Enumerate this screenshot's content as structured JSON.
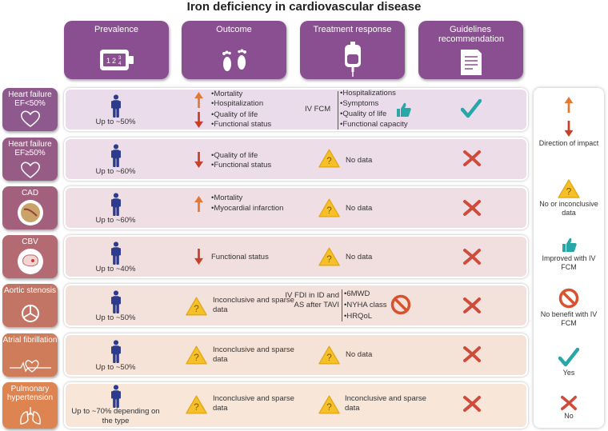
{
  "title": "Iron deficiency in cardiovascular disease",
  "columns": {
    "prevalence": "Prevalence",
    "outcome": "Outcome",
    "treatment": "Treatment response",
    "guidelines": "Guidelines recommendation"
  },
  "rows": {
    "hf_low": {
      "label": "Heart failure EF<50%",
      "prevalence": "Up to ~50%",
      "outcome_up": [
        "Mortality",
        "Hospitalization"
      ],
      "outcome_down": [
        "Quality of life",
        "Functional status"
      ],
      "therapy": "IV FCM",
      "benefits": [
        "Hospitalizations",
        "Symptoms",
        "Quality of life",
        "Functional capacity"
      ]
    },
    "hf_high": {
      "label": "Heart failure EF≥50%",
      "prevalence": "Up to ~60%",
      "outcome": [
        "Quality of life",
        "Functional status"
      ],
      "treatment": "No data"
    },
    "cad": {
      "label": "CAD",
      "prevalence": "Up to ~60%",
      "outcome": [
        "Mortality",
        "Myocardial infarction"
      ],
      "treatment": "No data"
    },
    "cbv": {
      "label": "CBV",
      "prevalence": "Up to ~40%",
      "outcome": "Functional status",
      "treatment": "No data"
    },
    "as": {
      "label": "Aortic stenosis",
      "prevalence": "Up to ~50%",
      "outcome": "Inconclusive and sparse data",
      "therapy": "IV FDI in ID and AS after TAVI",
      "endpoints": [
        "6MWD",
        "NYHA class",
        "HRQoL"
      ]
    },
    "af": {
      "label": "Atrial fibrillation",
      "prevalence": "Up to ~50%",
      "outcome": "Inconclusive and sparse data",
      "treatment": "No data"
    },
    "ph": {
      "label": "Pulmonary hypertension",
      "prevalence": "Up to ~70% depending on the type",
      "outcome": "Inconclusive and sparse data",
      "treatment": "Inconclusive and sparse data"
    }
  },
  "legend": {
    "direction": "Direction of impact",
    "inconclusive": "No or inconclusive data",
    "improved": "Improved with IV FCM",
    "no_benefit": "No benefit with IV FCM",
    "yes": "Yes",
    "no": "No"
  },
  "colors": {
    "header_purple": "#8a4f91",
    "arrow_up": "#e07a36",
    "arrow_down": "#c8402a",
    "check": "#27a7a8",
    "cross": "#cf4b3a",
    "warning": "#f6c029"
  }
}
